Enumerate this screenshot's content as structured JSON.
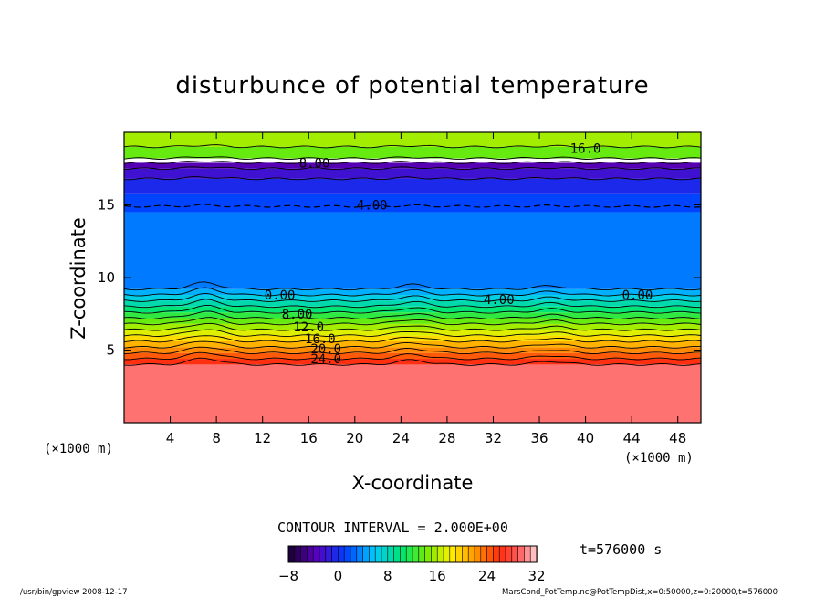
{
  "chart_data": {
    "type": "heatmap",
    "title": "disturbunce of potential temperature",
    "xlabel": "X-coordinate",
    "ylabel": "Z-coordinate",
    "x_unit": "(×1000 m)",
    "y_unit": "(×1000 m)",
    "xlim": [
      0,
      50
    ],
    "ylim": [
      0,
      20
    ],
    "x_ticks": [
      4,
      8,
      12,
      16,
      20,
      24,
      28,
      32,
      36,
      40,
      44,
      48
    ],
    "y_ticks": [
      5,
      10,
      15
    ],
    "contour_interval": "CONTOUR INTERVAL = 2.000E+00",
    "time_label": "t=576000 s",
    "colorbar": {
      "min": -8,
      "max": 32,
      "ticks": [
        "−8",
        "0",
        "8",
        "16",
        "24",
        "32"
      ]
    },
    "contour_labels": [
      {
        "text": "4.00",
        "x": 21.5,
        "z": 15.0
      },
      {
        "text": "0.00",
        "x": 13.5,
        "z": 8.8
      },
      {
        "text": "4.00",
        "x": 32.5,
        "z": 8.5
      },
      {
        "text": "0.00",
        "x": 44.5,
        "z": 8.8
      },
      {
        "text": "8.00",
        "x": 15.0,
        "z": 7.5
      },
      {
        "text": "12.0",
        "x": 16.0,
        "z": 6.6
      },
      {
        "text": "16.0",
        "x": 17.0,
        "z": 5.8
      },
      {
        "text": "20.0",
        "x": 17.5,
        "z": 5.1
      },
      {
        "text": "24.0",
        "x": 17.5,
        "z": 4.4
      },
      {
        "text": "8.00",
        "x": 16.5,
        "z": 17.9
      },
      {
        "text": "16.0",
        "x": 40.0,
        "z": 18.9
      }
    ],
    "bands": [
      {
        "z0": 0,
        "z1": 4.0,
        "value": 30
      },
      {
        "z0": 4.0,
        "z1": 4.4,
        "value": 26
      },
      {
        "z0": 4.4,
        "z1": 4.8,
        "value": 24
      },
      {
        "z0": 4.8,
        "z1": 5.2,
        "value": 22
      },
      {
        "z0": 5.2,
        "z1": 5.6,
        "value": 20
      },
      {
        "z0": 5.6,
        "z1": 6.0,
        "value": 18
      },
      {
        "z0": 6.0,
        "z1": 6.4,
        "value": 16
      },
      {
        "z0": 6.4,
        "z1": 6.8,
        "value": 14
      },
      {
        "z0": 6.8,
        "z1": 7.2,
        "value": 12
      },
      {
        "z0": 7.2,
        "z1": 7.6,
        "value": 10
      },
      {
        "z0": 7.6,
        "z1": 8.0,
        "value": 8
      },
      {
        "z0": 8.0,
        "z1": 8.4,
        "value": 6
      },
      {
        "z0": 8.4,
        "z1": 8.8,
        "value": 4
      },
      {
        "z0": 8.8,
        "z1": 9.2,
        "value": 2
      },
      {
        "z0": 9.2,
        "z1": 14.5,
        "value": 0
      },
      {
        "z0": 14.5,
        "z1": 15.8,
        "value": -2
      },
      {
        "z0": 15.8,
        "z1": 16.8,
        "value": -4
      },
      {
        "z0": 16.8,
        "z1": 17.5,
        "value": -6
      },
      {
        "z0": 17.5,
        "z1": 17.9,
        "value": -8
      },
      {
        "z0": 17.9,
        "z1": 18.2,
        "value": -10
      },
      {
        "z0": 18.2,
        "z1": 19.0,
        "value": 12
      },
      {
        "z0": 19.0,
        "z1": 20.0,
        "value": 14
      }
    ]
  },
  "footer": {
    "left": "/usr/bin/gpview   2008-12-17",
    "right": "MarsCond_PotTemp.nc@PotTempDist,x=0:50000,z=0:20000,t=576000"
  }
}
